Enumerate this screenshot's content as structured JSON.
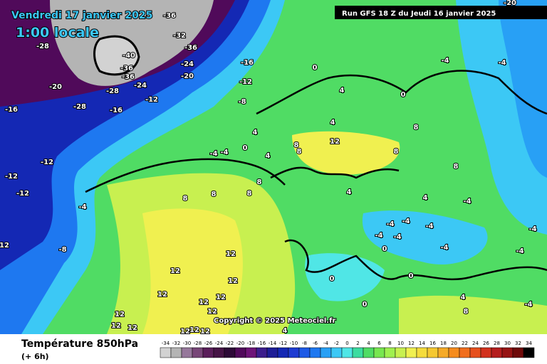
{
  "header": {
    "date": "Vendredi 17 janvier 2025",
    "time": "1:00 locale",
    "run": "Run GFS 18 Z du Jeudi 16 janvier 2025"
  },
  "footer": {
    "title": "Température 850hPa",
    "step": "(+ 6h)",
    "copyright": "Copyright © 2025 Meteociel.fr"
  },
  "colorbar": {
    "ticks": [
      -34,
      -32,
      -30,
      -28,
      -26,
      -24,
      -22,
      -20,
      -18,
      -16,
      -14,
      -12,
      -10,
      -8,
      -6,
      -4,
      -2,
      0,
      2,
      4,
      6,
      8,
      10,
      12,
      14,
      16,
      18,
      20,
      22,
      24,
      26,
      28,
      30,
      32,
      34
    ],
    "colors": [
      "#d2d2d2",
      "#b4b4b4",
      "#96789b",
      "#784678",
      "#5a1e5a",
      "#461446",
      "#2d0a37",
      "#500a5a",
      "#6e1478",
      "#3c1e8c",
      "#1e1e96",
      "#1428b4",
      "#1e3cd2",
      "#1e5ae6",
      "#1e78f0",
      "#28a0f5",
      "#3cc8f5",
      "#50e6e6",
      "#3cdca0",
      "#50dc64",
      "#78e650",
      "#a0f050",
      "#c8f050",
      "#f0f050",
      "#f5dc3c",
      "#f5c832",
      "#f5aa28",
      "#f58c1e",
      "#f06e1e",
      "#e6501e",
      "#d2321e",
      "#b41e1e",
      "#961414",
      "#6e0a0a",
      "#000000"
    ]
  },
  "contour_labels": [
    -28,
    -20,
    -16,
    -28,
    -16,
    -12,
    -16,
    -12,
    -8,
    -20,
    -24,
    -36,
    -32,
    -36,
    -40,
    -36,
    -36,
    -28,
    -24,
    -12,
    -12,
    -12,
    -4,
    12,
    -8,
    -4,
    -4,
    0,
    4,
    4,
    8,
    8,
    8,
    8,
    12,
    12,
    12,
    12,
    12,
    12,
    12,
    12,
    12,
    12,
    12,
    12,
    12,
    0,
    4,
    4,
    12,
    8,
    8,
    8,
    8,
    4,
    4,
    -4,
    -4,
    -4,
    -4,
    -4,
    0,
    -4,
    -4,
    0,
    -4,
    -4,
    0,
    0,
    4,
    -4,
    8,
    4,
    -4,
    -20,
    0,
    8,
    -4
  ]
}
